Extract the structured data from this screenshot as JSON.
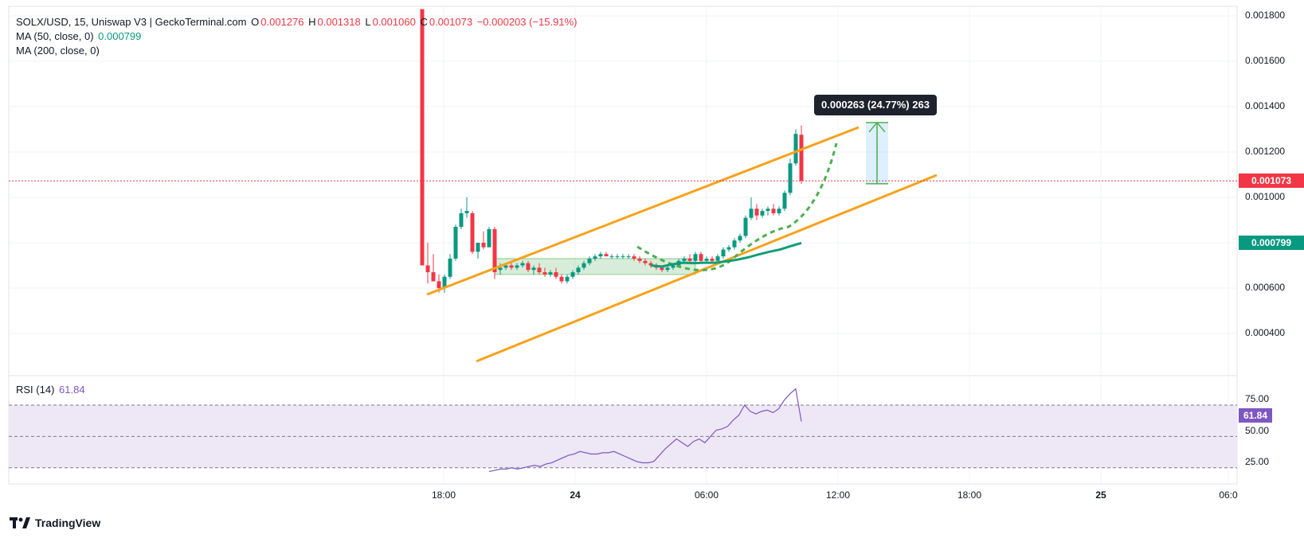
{
  "legend": {
    "symbol": "SOLX/USD, 15, Uniswap V3 | GeckoTerminal.com",
    "o_label": "O",
    "o_value": "0.001276",
    "h_label": "H",
    "h_value": "0.001318",
    "l_label": "L",
    "l_value": "0.001060",
    "c_label": "C",
    "c_value": "0.001073",
    "change": "−0.000203 (−15.91%)",
    "ma50_label": "MA (50, close, 0)",
    "ma50_value": "0.000799",
    "ma200_label": "MA (200, close, 0)"
  },
  "rsi_legend": {
    "label": "RSI (14)",
    "value": "61.84"
  },
  "price_axis": {
    "ticks": [
      "0.001800",
      "0.001600",
      "0.001400",
      "0.001200",
      "0.001000",
      "0.000600",
      "0.000400"
    ],
    "current_price_tag": "0.001073",
    "ma_tag": "0.000799"
  },
  "rsi_axis": {
    "ticks": [
      "75.00",
      "50.00",
      "25.00"
    ],
    "current_tag": "61.84"
  },
  "time_axis": {
    "ticks": [
      {
        "label": "18:00",
        "bold": false
      },
      {
        "label": "24",
        "bold": true
      },
      {
        "label": "06:00",
        "bold": false
      },
      {
        "label": "12:00",
        "bold": false
      },
      {
        "label": "18:00",
        "bold": false
      },
      {
        "label": "25",
        "bold": true
      },
      {
        "label": "06:0",
        "bold": false
      }
    ]
  },
  "measure_tooltip": "0.000263 (24.77%) 263",
  "branding": "TradingView",
  "colors": {
    "up": "#089981",
    "down": "#f23645",
    "ma50": "#0f9d77",
    "channel": "#f7a21b",
    "rsi": "#7e57c2",
    "rsi_band": "#ede7f6"
  },
  "chart_data": {
    "type": "candlestick",
    "timeframe": "15",
    "ylim": [
      0.00022,
      0.00184
    ],
    "rsi_ylim": [
      0,
      100
    ],
    "candles": [
      {
        "o": 0.00183,
        "h": 0.00183,
        "l": 0.0007,
        "c": 0.0007
      },
      {
        "o": 0.0007,
        "h": 0.0008,
        "l": 0.00062,
        "c": 0.00067
      },
      {
        "o": 0.00067,
        "h": 0.00075,
        "l": 0.00063,
        "c": 0.00063
      },
      {
        "o": 0.00063,
        "h": 0.00066,
        "l": 0.00058,
        "c": 0.0006
      },
      {
        "o": 0.0006,
        "h": 0.00066,
        "l": 0.00058,
        "c": 0.00065
      },
      {
        "o": 0.00065,
        "h": 0.00075,
        "l": 0.00064,
        "c": 0.00073
      },
      {
        "o": 0.00073,
        "h": 0.00088,
        "l": 0.00072,
        "c": 0.00087
      },
      {
        "o": 0.00087,
        "h": 0.00095,
        "l": 0.00086,
        "c": 0.00093
      },
      {
        "o": 0.00093,
        "h": 0.001,
        "l": 0.00091,
        "c": 0.00094
      },
      {
        "o": 0.00093,
        "h": 0.00094,
        "l": 0.00075,
        "c": 0.00076
      },
      {
        "o": 0.00076,
        "h": 0.0008,
        "l": 0.00073,
        "c": 0.0008
      },
      {
        "o": 0.0008,
        "h": 0.00085,
        "l": 0.00077,
        "c": 0.00078
      },
      {
        "o": 0.00078,
        "h": 0.00087,
        "l": 0.00078,
        "c": 0.00086
      },
      {
        "o": 0.00086,
        "h": 0.00087,
        "l": 0.00064,
        "c": 0.00067
      },
      {
        "o": 0.00068,
        "h": 0.00071,
        "l": 0.00066,
        "c": 0.00069
      },
      {
        "o": 0.00069,
        "h": 0.00071,
        "l": 0.00068,
        "c": 0.0007
      },
      {
        "o": 0.0007,
        "h": 0.00071,
        "l": 0.00068,
        "c": 0.00069
      },
      {
        "o": 0.00069,
        "h": 0.00071,
        "l": 0.00068,
        "c": 0.0007
      },
      {
        "o": 0.0007,
        "h": 0.00072,
        "l": 0.00069,
        "c": 0.00071
      },
      {
        "o": 0.00071,
        "h": 0.00072,
        "l": 0.00067,
        "c": 0.00068
      },
      {
        "o": 0.00068,
        "h": 0.0007,
        "l": 0.00066,
        "c": 0.00069
      },
      {
        "o": 0.00069,
        "h": 0.00071,
        "l": 0.00066,
        "c": 0.00067
      },
      {
        "o": 0.00067,
        "h": 0.00069,
        "l": 0.00065,
        "c": 0.00066
      },
      {
        "o": 0.00066,
        "h": 0.00068,
        "l": 0.00065,
        "c": 0.00067
      },
      {
        "o": 0.00067,
        "h": 0.00069,
        "l": 0.00064,
        "c": 0.00065
      },
      {
        "o": 0.00065,
        "h": 0.00066,
        "l": 0.00062,
        "c": 0.00063
      },
      {
        "o": 0.00063,
        "h": 0.00066,
        "l": 0.00062,
        "c": 0.00065
      },
      {
        "o": 0.00065,
        "h": 0.00068,
        "l": 0.00064,
        "c": 0.00067
      },
      {
        "o": 0.00067,
        "h": 0.0007,
        "l": 0.00066,
        "c": 0.00069
      },
      {
        "o": 0.00069,
        "h": 0.00072,
        "l": 0.00068,
        "c": 0.00071
      },
      {
        "o": 0.00071,
        "h": 0.00074,
        "l": 0.0007,
        "c": 0.00073
      },
      {
        "o": 0.00073,
        "h": 0.00075,
        "l": 0.00072,
        "c": 0.00074
      },
      {
        "o": 0.00074,
        "h": 0.00076,
        "l": 0.00073,
        "c": 0.00075
      },
      {
        "o": 0.00075,
        "h": 0.00076,
        "l": 0.00074,
        "c": 0.00074
      },
      {
        "o": 0.00074,
        "h": 0.00075,
        "l": 0.00073,
        "c": 0.00074
      },
      {
        "o": 0.00074,
        "h": 0.00075,
        "l": 0.00073,
        "c": 0.00074
      },
      {
        "o": 0.00074,
        "h": 0.00075,
        "l": 0.00073,
        "c": 0.00074
      },
      {
        "o": 0.00074,
        "h": 0.00075,
        "l": 0.00073,
        "c": 0.00074
      },
      {
        "o": 0.00074,
        "h": 0.00075,
        "l": 0.00072,
        "c": 0.00073
      },
      {
        "o": 0.00073,
        "h": 0.00074,
        "l": 0.00071,
        "c": 0.00072
      },
      {
        "o": 0.00072,
        "h": 0.00073,
        "l": 0.0007,
        "c": 0.00071
      },
      {
        "o": 0.00071,
        "h": 0.00072,
        "l": 0.00069,
        "c": 0.0007
      },
      {
        "o": 0.0007,
        "h": 0.00071,
        "l": 0.00068,
        "c": 0.00069
      },
      {
        "o": 0.00069,
        "h": 0.0007,
        "l": 0.00067,
        "c": 0.00068
      },
      {
        "o": 0.00068,
        "h": 0.0007,
        "l": 0.00067,
        "c": 0.00069
      },
      {
        "o": 0.00069,
        "h": 0.00071,
        "l": 0.00068,
        "c": 0.0007
      },
      {
        "o": 0.0007,
        "h": 0.00073,
        "l": 0.00069,
        "c": 0.00072
      },
      {
        "o": 0.00072,
        "h": 0.00074,
        "l": 0.00071,
        "c": 0.00073
      },
      {
        "o": 0.00073,
        "h": 0.00075,
        "l": 0.00071,
        "c": 0.00072
      },
      {
        "o": 0.00072,
        "h": 0.00076,
        "l": 0.00071,
        "c": 0.00075
      },
      {
        "o": 0.00075,
        "h": 0.00076,
        "l": 0.00071,
        "c": 0.00072
      },
      {
        "o": 0.00072,
        "h": 0.00074,
        "l": 0.00071,
        "c": 0.00073
      },
      {
        "o": 0.00073,
        "h": 0.00074,
        "l": 0.00071,
        "c": 0.00072
      },
      {
        "o": 0.00072,
        "h": 0.00075,
        "l": 0.00072,
        "c": 0.00074
      },
      {
        "o": 0.00074,
        "h": 0.00078,
        "l": 0.00073,
        "c": 0.00077
      },
      {
        "o": 0.00077,
        "h": 0.00079,
        "l": 0.00076,
        "c": 0.00078
      },
      {
        "o": 0.00078,
        "h": 0.00082,
        "l": 0.00077,
        "c": 0.00081
      },
      {
        "o": 0.00081,
        "h": 0.00084,
        "l": 0.0008,
        "c": 0.00083
      },
      {
        "o": 0.00083,
        "h": 0.00092,
        "l": 0.00082,
        "c": 0.00091
      },
      {
        "o": 0.00091,
        "h": 0.001,
        "l": 0.0009,
        "c": 0.00095
      },
      {
        "o": 0.00095,
        "h": 0.00097,
        "l": 0.0009,
        "c": 0.00092
      },
      {
        "o": 0.00092,
        "h": 0.00095,
        "l": 0.00091,
        "c": 0.00094
      },
      {
        "o": 0.00094,
        "h": 0.00096,
        "l": 0.00092,
        "c": 0.00095
      },
      {
        "o": 0.00095,
        "h": 0.00097,
        "l": 0.00092,
        "c": 0.00093
      },
      {
        "o": 0.00093,
        "h": 0.00096,
        "l": 0.00092,
        "c": 0.00095
      },
      {
        "o": 0.00095,
        "h": 0.00103,
        "l": 0.00094,
        "c": 0.00102
      },
      {
        "o": 0.00102,
        "h": 0.00117,
        "l": 0.00101,
        "c": 0.00115
      },
      {
        "o": 0.00115,
        "h": 0.0013,
        "l": 0.00114,
        "c": 0.00128
      },
      {
        "o": 0.001276,
        "h": 0.001318,
        "l": 0.00106,
        "c": 0.001073
      }
    ],
    "ma50": [
      0.0007,
      0.000695,
      0.000705,
      0.000712,
      0.00071,
      0.000712,
      0.000712,
      0.000718,
      0.000725,
      0.000735,
      0.000748,
      0.00076,
      0.00077,
      0.000785,
      0.000799
    ],
    "rsi": [
      22,
      23,
      24,
      24,
      25,
      24,
      25,
      26,
      27,
      26,
      28,
      29,
      31,
      33,
      35,
      36,
      38,
      37,
      36,
      36,
      37,
      37,
      38,
      36,
      34,
      32,
      30,
      29,
      29,
      30,
      35,
      40,
      44,
      48,
      45,
      42,
      46,
      48,
      45,
      50,
      55,
      56,
      58,
      63,
      67,
      75,
      70,
      68,
      70,
      71,
      69,
      72,
      79,
      84,
      88,
      62
    ]
  }
}
